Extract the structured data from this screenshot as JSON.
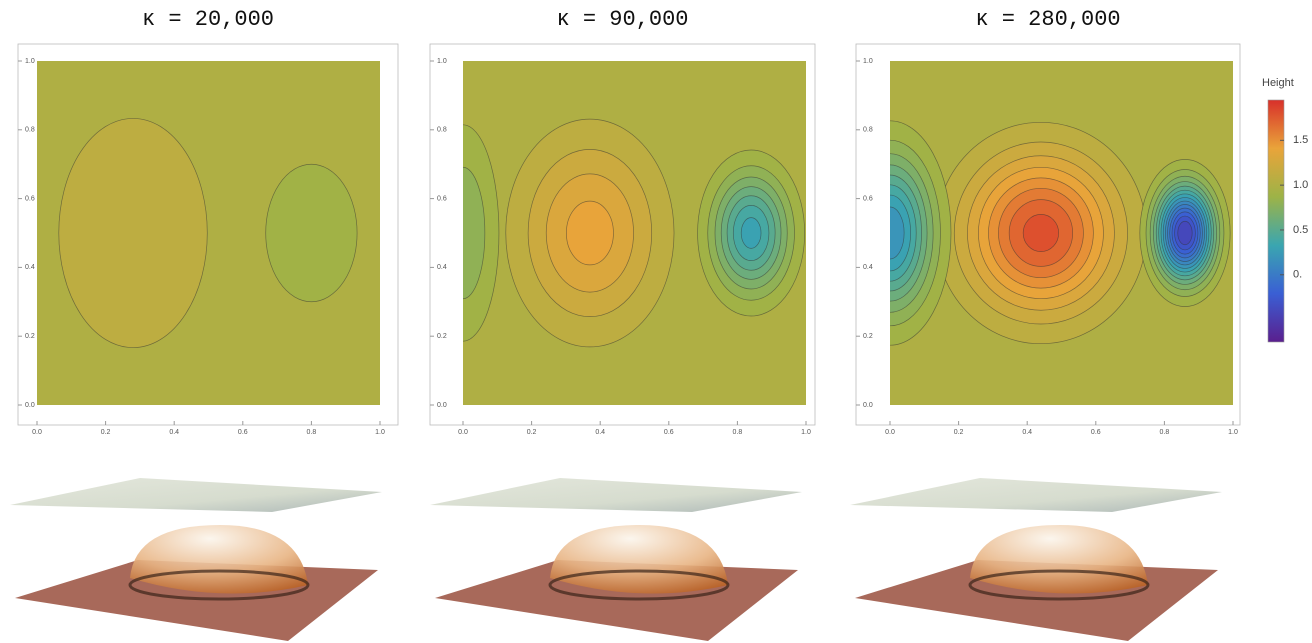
{
  "chart_data": [
    {
      "type": "contour",
      "title": "κ = 20,000",
      "xlim": [
        0,
        1
      ],
      "ylim": [
        0,
        1
      ],
      "xticks": [
        {
          "value": 0,
          "label": "0.0"
        },
        0.2,
        0.4,
        0.6,
        0.8,
        {
          "value": 1,
          "label": "1.0"
        }
      ],
      "yticks": [
        {
          "value": 0,
          "label": "0.0"
        },
        0.2,
        0.4,
        0.6,
        0.8,
        {
          "value": 1,
          "label": "1.0"
        }
      ],
      "base": 1,
      "contour_interval": 0.1,
      "extrema": [
        {
          "x": 0.28,
          "y": 0.5,
          "z": 1.2,
          "width": [
            0.26,
            0.4
          ]
        },
        {
          "x": 0.8,
          "y": 0.5,
          "z": 0.8,
          "width": [
            0.16,
            0.24
          ]
        }
      ]
    },
    {
      "type": "contour",
      "title": "κ = 90,000",
      "xlim": [
        0,
        1
      ],
      "ylim": [
        0,
        1
      ],
      "xticks": [
        {
          "value": 0,
          "label": "0.0"
        },
        0.2,
        0.4,
        0.6,
        0.8,
        {
          "value": 1,
          "label": "1.0"
        }
      ],
      "yticks": [
        {
          "value": 0,
          "label": "0.0"
        },
        0.2,
        0.4,
        0.6,
        0.8,
        {
          "value": 1,
          "label": "1.0"
        }
      ],
      "base": 1,
      "contour_interval": 0.1,
      "extrema": [
        {
          "x": 0.37,
          "y": 0.5,
          "z": 1.45,
          "width": [
            0.2,
            0.27
          ]
        },
        {
          "x": 0.84,
          "y": 0.5,
          "z": 0.25,
          "width": [
            0.11,
            0.17
          ]
        },
        {
          "x": 0.0,
          "y": 0.5,
          "z": 0.7,
          "width": [
            0.1,
            0.3
          ]
        }
      ]
    },
    {
      "type": "contour",
      "title": "κ = 280,000",
      "xlim": [
        0,
        1
      ],
      "ylim": [
        0,
        1
      ],
      "xticks": [
        {
          "value": 0,
          "label": "0.0"
        },
        0.2,
        0.4,
        0.6,
        0.8,
        {
          "value": 1,
          "label": "1.0"
        }
      ],
      "yticks": [
        {
          "value": 0,
          "label": "0.0"
        },
        0.2,
        0.4,
        0.6,
        0.8,
        {
          "value": 1,
          "label": "1.0"
        }
      ],
      "base": 1,
      "contour_interval": 0.1,
      "extrema": [
        {
          "x": 0.44,
          "y": 0.5,
          "z": 1.85,
          "width": [
            0.21,
            0.22
          ]
        },
        {
          "x": 0.86,
          "y": 0.5,
          "z": -0.5,
          "width": [
            0.08,
            0.13
          ]
        },
        {
          "x": 0.0,
          "y": 0.5,
          "z": 0.1,
          "width": [
            0.12,
            0.22
          ]
        }
      ],
      "colorbar": {
        "label": "Height",
        "lim": [
          -0.75,
          1.95
        ],
        "ticks": [
          {
            "value": 0,
            "label": "0."
          },
          0.5,
          {
            "value": 1,
            "label": "1.0"
          },
          1.5
        ],
        "colors": [
          "#5a1f8e",
          "#3a5fd4",
          "#3aa6b0",
          "#9db347",
          "#e9a43a",
          "#d8302a"
        ]
      }
    }
  ]
}
